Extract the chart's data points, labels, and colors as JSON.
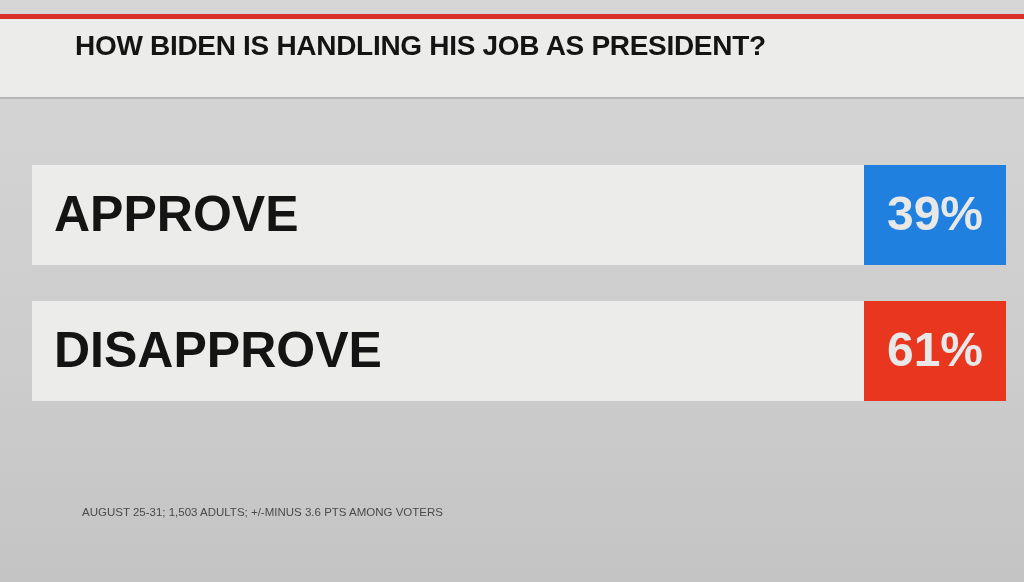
{
  "chart_data": {
    "type": "other",
    "title": "HOW BIDEN IS HANDLING HIS JOB AS PRESIDENT?",
    "categories": [
      "APPROVE",
      "DISAPPROVE"
    ],
    "values": [
      39,
      61
    ],
    "value_labels": [
      "39%",
      "61%"
    ],
    "colors": [
      "#1f80e0",
      "#e8361f"
    ],
    "annotations": [
      "AUGUST 25-31; 1,503 ADULTS; +/-MINUS 3.6 PTS AMONG VOTERS"
    ]
  }
}
